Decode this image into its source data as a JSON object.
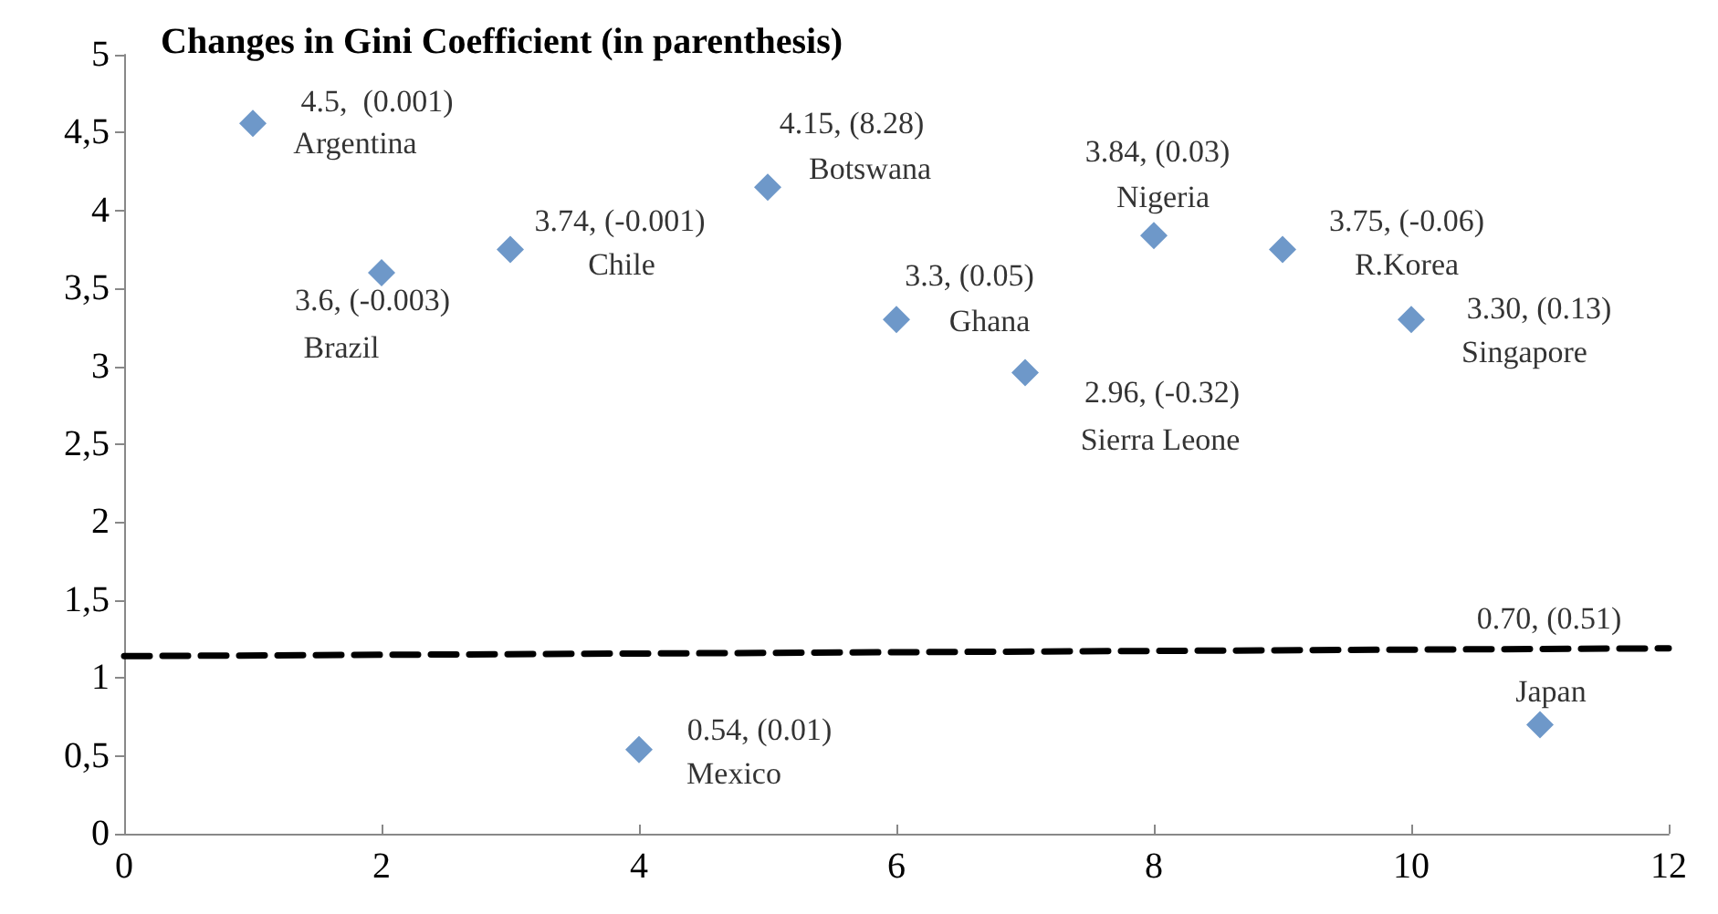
{
  "chart_data": {
    "type": "scatter",
    "title": "Changes in Gini Coefficient (in parenthesis)",
    "marker": "diamond",
    "grid": false,
    "xlim": [
      0,
      12
    ],
    "xticks": [
      0,
      2,
      4,
      6,
      8,
      10,
      12
    ],
    "ylim": [
      0,
      5
    ],
    "yticks": [
      0,
      {
        "value": 0.5,
        "label": "0,5"
      },
      1,
      {
        "value": 1.5,
        "label": "1,5"
      },
      2,
      {
        "value": 2.5,
        "label": "2,5"
      },
      3,
      {
        "value": 3.5,
        "label": "3,5"
      },
      4,
      {
        "value": 4.5,
        "label": "4,5"
      },
      5
    ],
    "series": [
      {
        "color": "#4a7ebb",
        "x": [
          1,
          2,
          3,
          4,
          5,
          6,
          7,
          8,
          9,
          10,
          11
        ],
        "values": [
          4.56,
          3.6,
          3.75,
          0.54,
          4.15,
          3.3,
          2.96,
          3.84,
          3.75,
          3.3,
          0.7
        ]
      },
      {
        "type": "line",
        "color": "#000000",
        "line_style": "dashed",
        "marker": "none",
        "x": [
          0,
          12
        ],
        "values": [
          1.14,
          1.19
        ]
      }
    ],
    "annotations": [
      {
        "text": "4.5,  (0.001)",
        "x": 1,
        "y": 4.56
      },
      {
        "text": "Argentina",
        "x": 1,
        "y": 4.56
      },
      {
        "text": "3.6, (-0.003)",
        "x": 2,
        "y": 3.6
      },
      {
        "text": "Brazil",
        "x": 2,
        "y": 3.6
      },
      {
        "text": "3.74, (-0.001)",
        "x": 3,
        "y": 3.75
      },
      {
        "text": "Chile",
        "x": 3,
        "y": 3.75
      },
      {
        "text": "0.54, (0.01)",
        "x": 4,
        "y": 0.54
      },
      {
        "text": "Mexico",
        "x": 4,
        "y": 0.54
      },
      {
        "text": "4.15, (8.28)",
        "x": 5,
        "y": 4.15
      },
      {
        "text": "Botswana",
        "x": 5,
        "y": 4.15
      },
      {
        "text": "3.3, (0.05)",
        "x": 6,
        "y": 3.3
      },
      {
        "text": "Ghana",
        "x": 6,
        "y": 3.3
      },
      {
        "text": "2.96, (-0.32)",
        "x": 7,
        "y": 2.96
      },
      {
        "text": "Sierra Leone",
        "x": 7,
        "y": 2.96
      },
      {
        "text": "3.84, (0.03)",
        "x": 8,
        "y": 3.84
      },
      {
        "text": "Nigeria",
        "x": 8,
        "y": 3.84
      },
      {
        "text": "3.75, (-0.06)",
        "x": 9,
        "y": 3.75
      },
      {
        "text": "R.Korea",
        "x": 9,
        "y": 3.75
      },
      {
        "text": "3.30, (0.13)",
        "x": 10,
        "y": 3.3
      },
      {
        "text": "Singapore",
        "x": 10,
        "y": 3.3
      },
      {
        "text": "0.70, (0.51)",
        "x": 11,
        "y": 0.7
      },
      {
        "text": "Japan",
        "x": 11,
        "y": 0.7
      }
    ]
  }
}
